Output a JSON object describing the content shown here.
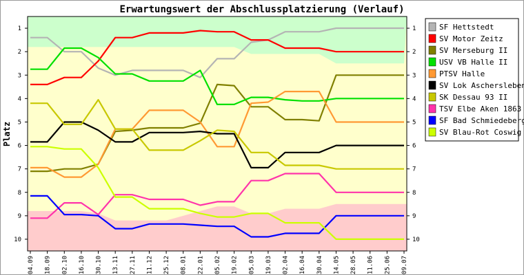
{
  "chart_data": {
    "type": "line",
    "title": "Erwartungswert der Abschlussplatzierung (Verlauf)",
    "ylabel": "Platz",
    "xlabel": "",
    "ylim": [
      10.5,
      0.5
    ],
    "y_ticks": [
      1,
      2,
      3,
      4,
      5,
      6,
      7,
      8,
      9,
      10
    ],
    "y_tick_labels": [
      "1",
      "2",
      "3",
      "4",
      "5",
      "6",
      "7",
      "8",
      "9",
      "10"
    ],
    "grid": false,
    "legend_position": "right",
    "x": [
      "04.09",
      "18.09",
      "02.10",
      "16.10",
      "30.10",
      "13.11",
      "27.11",
      "11.12",
      "25.12",
      "08.01",
      "22.01",
      "05.02",
      "19.02",
      "05.03",
      "19.03",
      "02.04",
      "16.04",
      "30.04",
      "14.05",
      "28.05",
      "11.06",
      "25.06",
      "09.07"
    ],
    "bands": {
      "green_lower": [
        1.8,
        1.8,
        1.8,
        1.8,
        1.8,
        1.8,
        1.8,
        1.8,
        1.8,
        1.8,
        1.8,
        1.8,
        1.8,
        2.1,
        2.1,
        2.1,
        2.1,
        2.1,
        2.5,
        2.5,
        2.5,
        2.5,
        2.5
      ],
      "red_upper": [
        8.8,
        8.8,
        8.8,
        8.8,
        8.9,
        9.2,
        9.2,
        9.2,
        9.2,
        9.0,
        8.8,
        8.6,
        8.6,
        8.9,
        8.9,
        8.7,
        8.7,
        8.7,
        8.5,
        8.5,
        8.5,
        8.5,
        8.5
      ],
      "colors": {
        "green": "#ccffcc",
        "yellow": "#ffffcc",
        "red": "#ffcccc"
      }
    },
    "series": [
      {
        "name": "SF Hettstedt",
        "color": "#b4b4b4",
        "values": [
          1.4,
          1.4,
          2.0,
          2.0,
          2.7,
          3.0,
          2.8,
          2.8,
          2.8,
          2.8,
          3.1,
          2.3,
          2.3,
          1.6,
          1.5,
          1.15,
          1.15,
          1.15,
          1.0,
          1.0,
          1.0,
          1.0,
          1.0
        ]
      },
      {
        "name": "SV Motor Zeitz",
        "color": "#ff0000",
        "values": [
          3.4,
          3.4,
          3.1,
          3.1,
          2.4,
          1.4,
          1.4,
          1.2,
          1.2,
          1.2,
          1.1,
          1.15,
          1.15,
          1.5,
          1.5,
          1.85,
          1.85,
          1.85,
          2.0,
          2.0,
          2.0,
          2.0,
          2.0
        ]
      },
      {
        "name": "SV Merseburg II",
        "color": "#808000",
        "values": [
          7.1,
          7.1,
          7.0,
          7.0,
          6.8,
          5.4,
          5.35,
          5.25,
          5.25,
          5.25,
          5.05,
          3.4,
          3.45,
          4.35,
          4.35,
          4.9,
          4.9,
          4.95,
          3.0,
          3.0,
          3.0,
          3.0,
          3.0
        ]
      },
      {
        "name": "USV VB Halle II",
        "color": "#00e000",
        "values": [
          2.75,
          2.75,
          1.85,
          1.85,
          2.25,
          2.95,
          2.95,
          3.25,
          3.25,
          3.25,
          2.8,
          4.25,
          4.25,
          3.95,
          3.95,
          4.05,
          4.1,
          4.1,
          4.0,
          4.0,
          4.0,
          4.0,
          4.0
        ]
      },
      {
        "name": "PTSV Halle",
        "color": "#ff9933",
        "values": [
          6.95,
          6.95,
          7.35,
          7.35,
          6.8,
          5.3,
          5.3,
          4.5,
          4.5,
          4.5,
          5.0,
          6.05,
          6.05,
          4.2,
          4.15,
          3.7,
          3.7,
          3.7,
          5.0,
          5.0,
          5.0,
          5.0,
          5.0
        ]
      },
      {
        "name": "SV Lok Aschersleben",
        "color": "#000000",
        "values": [
          5.85,
          5.85,
          5.0,
          5.0,
          5.35,
          5.85,
          5.85,
          5.45,
          5.45,
          5.45,
          5.4,
          5.5,
          5.5,
          6.95,
          6.95,
          6.3,
          6.3,
          6.3,
          6.0,
          6.0,
          6.0,
          6.0,
          6.0
        ]
      },
      {
        "name": "SK Dessau 93 II",
        "color": "#c8c800",
        "values": [
          4.2,
          4.2,
          5.1,
          5.1,
          4.05,
          5.3,
          5.3,
          6.2,
          6.2,
          6.2,
          5.8,
          5.35,
          5.4,
          6.3,
          6.3,
          6.85,
          6.85,
          6.85,
          7.0,
          7.0,
          7.0,
          7.0,
          7.0
        ]
      },
      {
        "name": "TSV Elbe Aken 1863",
        "color": "#ff33aa",
        "values": [
          9.1,
          9.1,
          8.45,
          8.45,
          8.95,
          8.1,
          8.1,
          8.3,
          8.3,
          8.3,
          8.55,
          8.4,
          8.4,
          7.5,
          7.5,
          7.2,
          7.2,
          7.2,
          8.0,
          8.0,
          8.0,
          8.0,
          8.0
        ]
      },
      {
        "name": "SF Bad Schmiedeberg",
        "color": "#0000ff",
        "values": [
          8.15,
          8.15,
          8.95,
          8.95,
          9.0,
          9.55,
          9.55,
          9.35,
          9.35,
          9.35,
          9.4,
          9.45,
          9.45,
          9.9,
          9.9,
          9.75,
          9.75,
          9.75,
          9.0,
          9.0,
          9.0,
          9.0,
          9.0
        ]
      },
      {
        "name": "SV Blau-Rot Coswig",
        "color": "#ccff00",
        "values": [
          6.05,
          6.05,
          6.15,
          6.15,
          6.95,
          8.2,
          8.2,
          8.7,
          8.7,
          8.7,
          8.9,
          9.05,
          9.05,
          8.9,
          8.9,
          9.3,
          9.3,
          9.3,
          10.0,
          10.0,
          10.0,
          10.0,
          10.0
        ]
      }
    ]
  }
}
